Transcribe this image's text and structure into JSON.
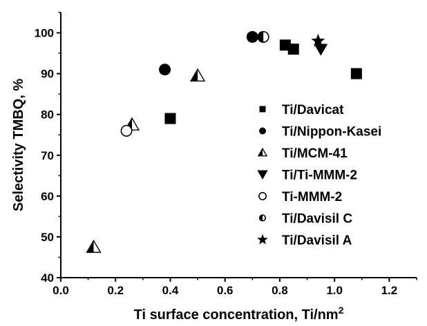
{
  "chart_data": {
    "type": "scatter",
    "xlabel": "Ti surface concentration, Ti/nm²",
    "ylabel": "Selectivity TMBQ, %",
    "xlim": [
      0.0,
      1.3
    ],
    "ylim": [
      40,
      105
    ],
    "x_ticks": [
      "0.0",
      "0.2",
      "0.4",
      "0.6",
      "0.8",
      "1.0",
      "1.2"
    ],
    "y_ticks": [
      "40",
      "50",
      "60",
      "70",
      "80",
      "90",
      "100"
    ],
    "grid": false,
    "legend_position": "right",
    "series": [
      {
        "name": "Ti/Davicat",
        "marker": "square",
        "points": [
          [
            0.4,
            79
          ],
          [
            0.82,
            97
          ],
          [
            0.85,
            96
          ],
          [
            1.08,
            90
          ]
        ]
      },
      {
        "name": "Ti/Nippon-Kasei",
        "marker": "circle",
        "points": [
          [
            0.38,
            91
          ],
          [
            0.7,
            99
          ]
        ]
      },
      {
        "name": "Ti/MCM-41",
        "marker": "half-triangle",
        "points": [
          [
            0.12,
            47.5
          ],
          [
            0.26,
            77.5
          ],
          [
            0.5,
            89.5
          ]
        ]
      },
      {
        "name": "Ti/Ti-MMM-2",
        "marker": "triangle-down",
        "points": [
          [
            0.95,
            96
          ]
        ]
      },
      {
        "name": "Ti-MMM-2",
        "marker": "open-circle",
        "points": [
          [
            0.24,
            76
          ]
        ]
      },
      {
        "name": "Ti/Davisil C",
        "marker": "half-circle",
        "points": [
          [
            0.74,
            99
          ]
        ]
      },
      {
        "name": "Ti/Davisil A",
        "marker": "star",
        "points": [
          [
            0.94,
            98
          ]
        ]
      }
    ]
  }
}
